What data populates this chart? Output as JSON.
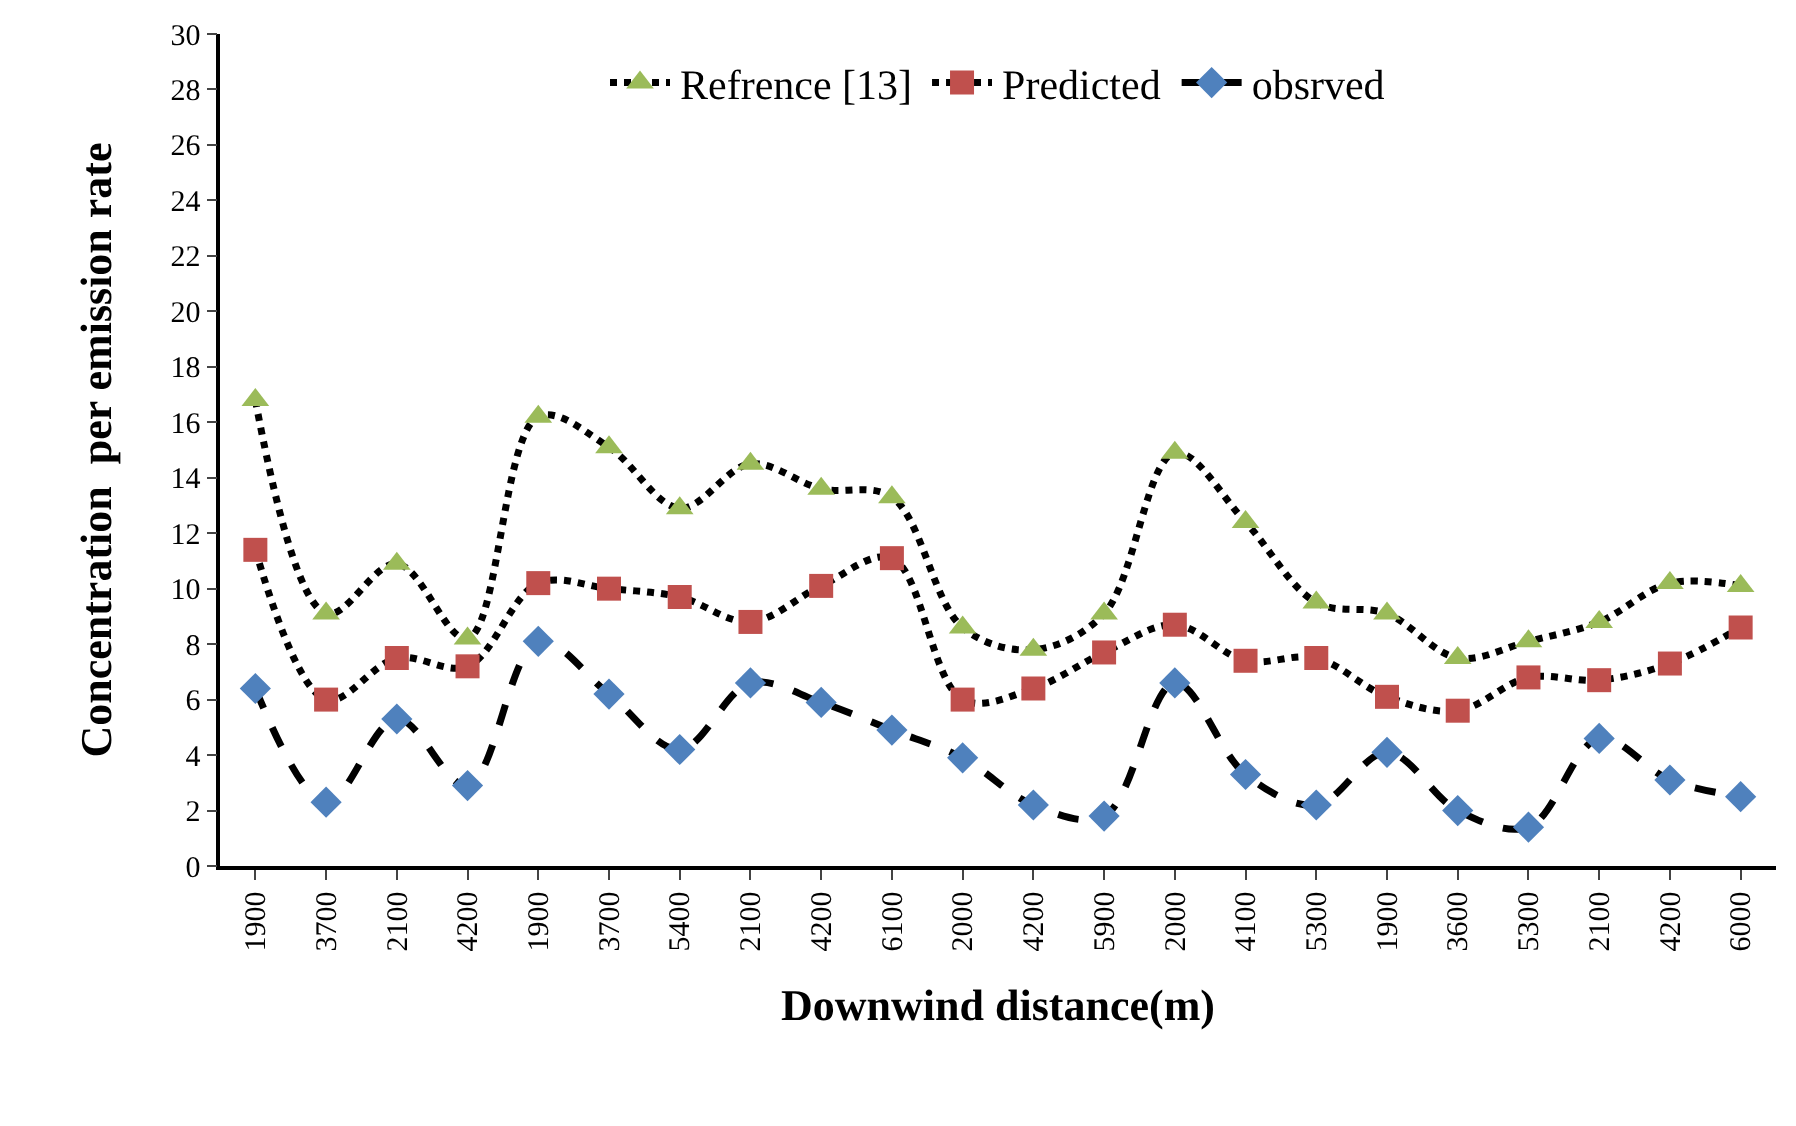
{
  "chart_data": {
    "type": "line",
    "xlabel": "Downwind distance(m)",
    "ylabel": "Concentration  per emission rate",
    "categories": [
      "1900",
      "3700",
      "2100",
      "4200",
      "1900",
      "3700",
      "5400",
      "2100",
      "4200",
      "6100",
      "2000",
      "4200",
      "5900",
      "2000",
      "4100",
      "5300",
      "1900",
      "3600",
      "5300",
      "2100",
      "4200",
      "6000"
    ],
    "series": [
      {
        "name": "Refrence [13]",
        "color": "#9bbb59",
        "marker": "triangle",
        "line_style": "dotted",
        "values": [
          16.8,
          9.1,
          10.9,
          8.2,
          16.2,
          15.1,
          12.9,
          14.5,
          13.6,
          13.3,
          8.6,
          7.8,
          9.1,
          14.9,
          12.4,
          9.5,
          9.1,
          7.5,
          8.1,
          8.8,
          10.2,
          10.1
        ]
      },
      {
        "name": "Predicted",
        "color": "#c0504d",
        "marker": "square",
        "line_style": "dotted",
        "values": [
          11.4,
          6.0,
          7.5,
          7.2,
          10.2,
          10.0,
          9.7,
          8.8,
          10.1,
          11.1,
          6.0,
          6.4,
          7.7,
          8.7,
          7.4,
          7.5,
          6.1,
          5.6,
          6.8,
          6.7,
          7.3,
          8.6
        ]
      },
      {
        "name": "obsrved",
        "color": "#4f81bd",
        "marker": "diamond",
        "line_style": "dashed",
        "values": [
          6.4,
          2.3,
          5.3,
          2.9,
          8.1,
          6.2,
          4.2,
          6.6,
          5.9,
          4.9,
          3.9,
          2.2,
          1.8,
          6.6,
          3.3,
          2.2,
          4.1,
          2.0,
          1.4,
          4.6,
          3.1,
          2.5
        ]
      }
    ],
    "ylim": [
      0,
      30
    ],
    "yticks": [
      0,
      2,
      4,
      6,
      8,
      10,
      12,
      14,
      16,
      18,
      20,
      22,
      24,
      26,
      28,
      30
    ],
    "grid": false,
    "legend": "top"
  }
}
